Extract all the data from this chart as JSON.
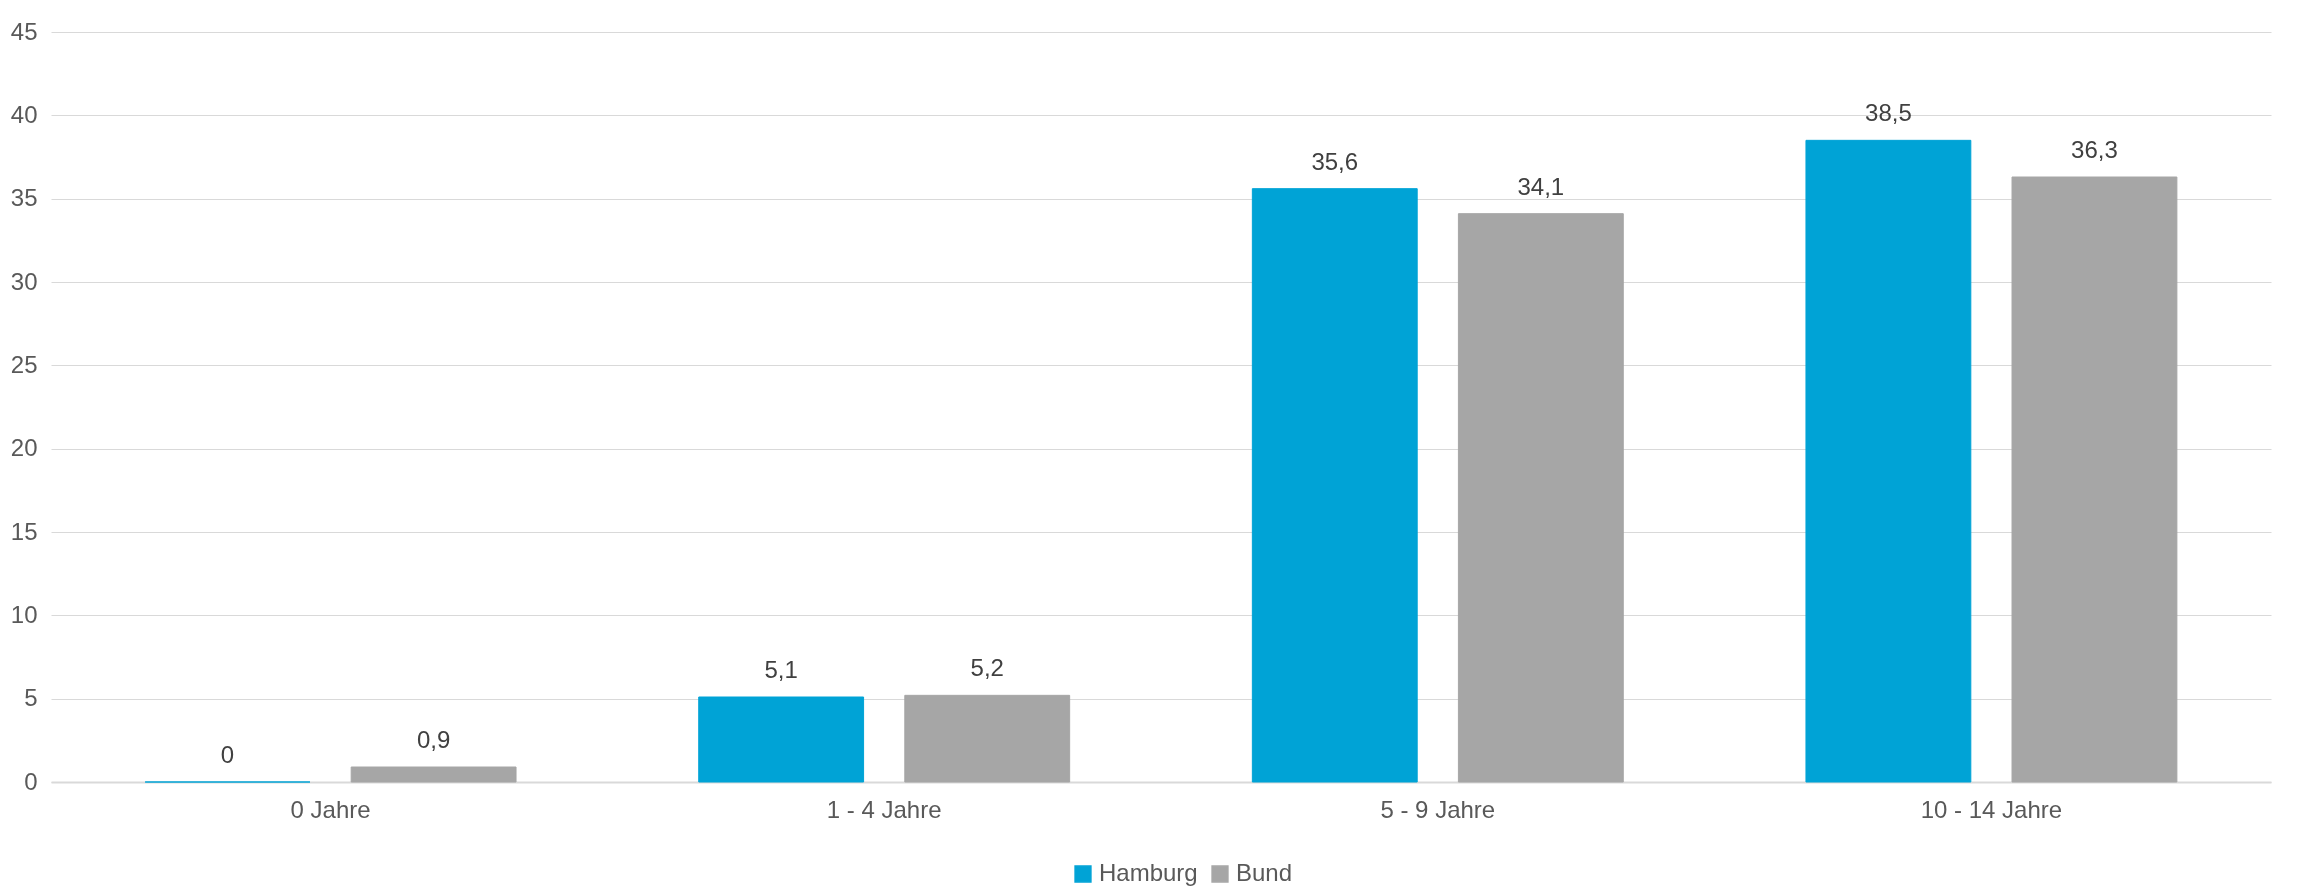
{
  "chart_data": {
    "type": "bar",
    "categories": [
      "0 Jahre",
      "1 - 4 Jahre",
      "5 - 9 Jahre",
      "10 - 14 Jahre"
    ],
    "series": [
      {
        "name": "Hamburg",
        "color": "#00a3d6",
        "values": [
          0,
          5.1,
          35.6,
          38.5
        ],
        "value_labels": [
          "0",
          "5,1",
          "35,6",
          "38,5"
        ]
      },
      {
        "name": "Bund",
        "color": "#a6a6a6",
        "values": [
          0.9,
          5.2,
          34.1,
          36.3
        ],
        "value_labels": [
          "0,9",
          "5,2",
          "34,1",
          "36,3"
        ]
      }
    ],
    "ylim": [
      0,
      45
    ],
    "yticks": [
      0,
      5,
      10,
      15,
      20,
      25,
      30,
      35,
      40,
      45
    ],
    "grid": "y",
    "legend": "bottom"
  }
}
